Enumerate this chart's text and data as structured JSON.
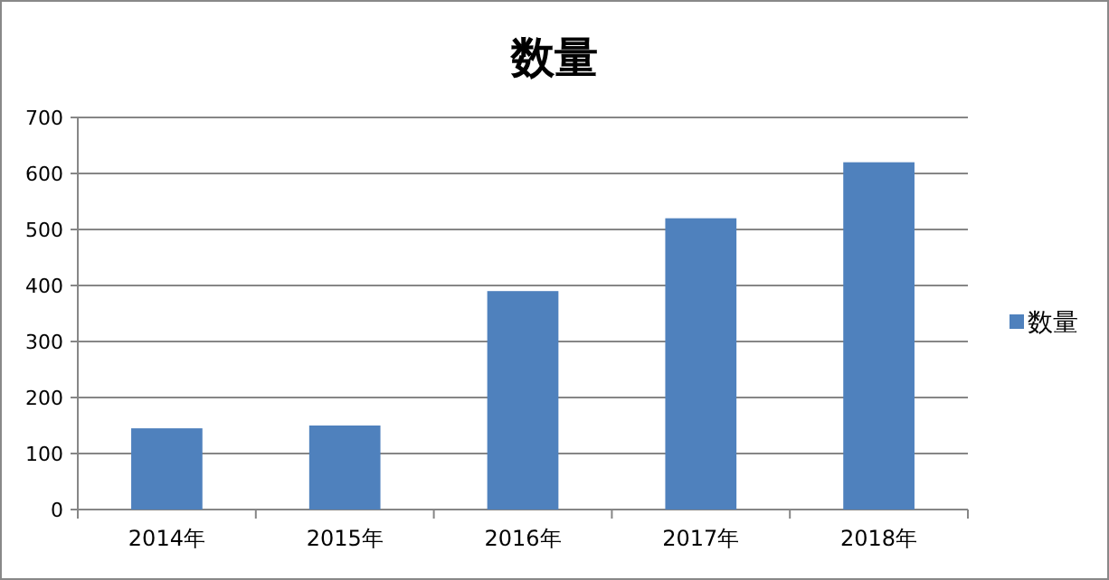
{
  "chart_data": {
    "type": "bar",
    "title": "数量",
    "categories": [
      "2014年",
      "2015年",
      "2016年",
      "2017年",
      "2018年"
    ],
    "series": [
      {
        "name": "数量",
        "color": "#4f81bd",
        "values": [
          145,
          150,
          390,
          520,
          620
        ]
      }
    ],
    "ylim": [
      0,
      700
    ],
    "yticks": [
      0,
      100,
      200,
      300,
      400,
      500,
      600,
      700
    ],
    "grid": "y",
    "legend": "right"
  }
}
